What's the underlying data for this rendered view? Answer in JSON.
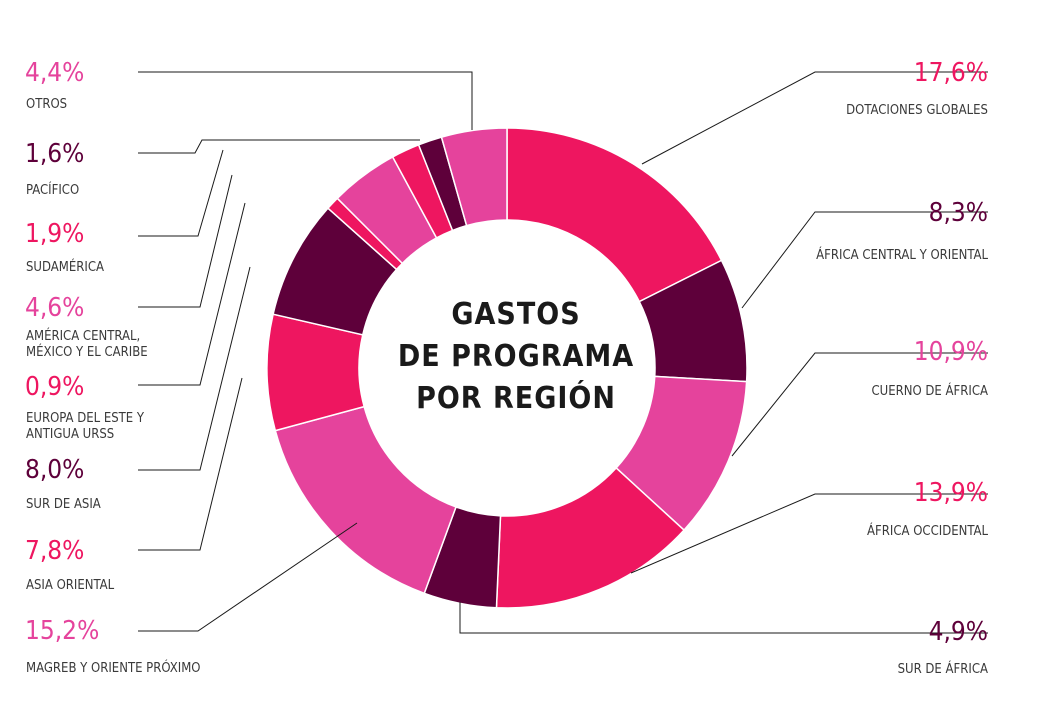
{
  "chart_data": {
    "type": "pie",
    "title_lines": [
      "GASTOS",
      "DE PROGRAMA",
      "POR REGIÓN"
    ],
    "slices": [
      {
        "pct_label": "17,6%",
        "label_lines": [
          "DOTACIONES GLOBALES"
        ],
        "value": 17.6,
        "color": "#ee1660"
      },
      {
        "pct_label": "8,3%",
        "label_lines": [
          "ÁFRICA CENTRAL Y ORIENTAL"
        ],
        "value": 8.3,
        "color": "#5e003a"
      },
      {
        "pct_label": "10,9%",
        "label_lines": [
          "CUERNO DE ÁFRICA"
        ],
        "value": 10.9,
        "color": "#e5439c"
      },
      {
        "pct_label": "13,9%",
        "label_lines": [
          "ÁFRICA OCCIDENTAL"
        ],
        "value": 13.9,
        "color": "#ee1660"
      },
      {
        "pct_label": "4,9%",
        "label_lines": [
          "SUR DE ÁFRICA"
        ],
        "value": 4.9,
        "color": "#5e003a"
      },
      {
        "pct_label": "15,2%",
        "label_lines": [
          "MAGREB Y ORIENTE PRÓXIMO"
        ],
        "value": 15.2,
        "color": "#e5439c"
      },
      {
        "pct_label": "7,8%",
        "label_lines": [
          "ASIA ORIENTAL"
        ],
        "value": 7.8,
        "color": "#ee1660"
      },
      {
        "pct_label": "8,0%",
        "label_lines": [
          "SUR DE ASIA"
        ],
        "value": 8.0,
        "color": "#5e003a"
      },
      {
        "pct_label": "0,9%",
        "label_lines": [
          "EUROPA DEL ESTE Y",
          "ANTIGUA URSS"
        ],
        "value": 0.9,
        "color": "#ee1660"
      },
      {
        "pct_label": "4,6%",
        "label_lines": [
          "AMÉRICA CENTRAL,",
          "MÉXICO Y EL CARIBE"
        ],
        "value": 4.6,
        "color": "#e5439c"
      },
      {
        "pct_label": "1,9%",
        "label_lines": [
          "SUDAMÉRICA"
        ],
        "value": 1.9,
        "color": "#ee1660"
      },
      {
        "pct_label": "1,6%",
        "label_lines": [
          "PACÍFICO"
        ],
        "value": 1.6,
        "color": "#5e003a"
      },
      {
        "pct_label": "4,4%",
        "label_lines": [
          "OTROS"
        ],
        "value": 4.4,
        "color": "#e5439c"
      }
    ],
    "legend": "labels around the donut with leader lines"
  }
}
